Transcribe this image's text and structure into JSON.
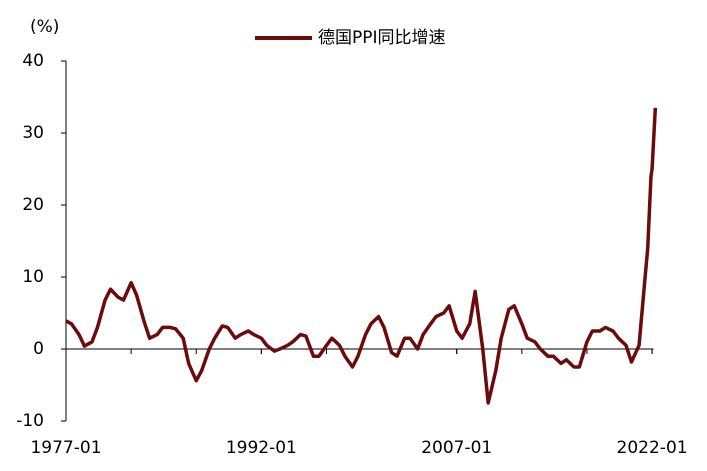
{
  "chart_data": {
    "type": "line",
    "y_label": "(%)",
    "x": [
      "1977-01",
      "1977-06",
      "1978-01",
      "1978-06",
      "1979-01",
      "1979-06",
      "1980-01",
      "1980-06",
      "1981-01",
      "1981-06",
      "1982-01",
      "1982-06",
      "1983-01",
      "1983-06",
      "1984-01",
      "1984-06",
      "1985-01",
      "1985-06",
      "1986-01",
      "1986-06",
      "1987-01",
      "1987-06",
      "1988-01",
      "1988-06",
      "1989-01",
      "1989-06",
      "1990-01",
      "1990-06",
      "1991-01",
      "1991-06",
      "1992-01",
      "1992-06",
      "1993-01",
      "1993-06",
      "1994-01",
      "1994-06",
      "1995-01",
      "1995-06",
      "1996-01",
      "1996-06",
      "1997-01",
      "1997-06",
      "1998-01",
      "1998-06",
      "1999-01",
      "1999-06",
      "2000-01",
      "2000-06",
      "2001-01",
      "2001-06",
      "2002-01",
      "2002-06",
      "2003-01",
      "2003-06",
      "2004-01",
      "2004-06",
      "2005-01",
      "2005-06",
      "2006-01",
      "2006-06",
      "2007-01",
      "2007-06",
      "2008-01",
      "2008-06",
      "2009-01",
      "2009-06",
      "2010-01",
      "2010-06",
      "2011-01",
      "2011-06",
      "2012-01",
      "2012-06",
      "2013-01",
      "2013-06",
      "2014-01",
      "2014-06",
      "2015-01",
      "2015-06",
      "2016-01",
      "2016-06",
      "2017-01",
      "2017-06",
      "2018-01",
      "2018-06",
      "2019-01",
      "2019-06",
      "2020-01",
      "2020-06",
      "2021-01",
      "2021-06",
      "2021-09",
      "2021-12",
      "2022-01",
      "2022-04"
    ],
    "series": [
      {
        "name": "德国PPI同比增速",
        "color": "#6b0b0b",
        "values": [
          3.9,
          3.5,
          2,
          0.4,
          1,
          3,
          6.8,
          8.3,
          7.2,
          6.8,
          9.2,
          7.5,
          3.8,
          1.5,
          2,
          3,
          3,
          2.8,
          1.5,
          -2,
          -4.4,
          -3,
          0,
          1.5,
          3.2,
          3,
          1.5,
          2,
          2.5,
          2,
          1.5,
          0.5,
          -0.3,
          0,
          0.5,
          1,
          2,
          1.8,
          -1,
          -1,
          0.5,
          1.5,
          0.5,
          -1,
          -2.5,
          -1,
          2,
          3.5,
          4.5,
          3,
          -0.5,
          -1,
          1.5,
          1.5,
          0,
          2,
          3.5,
          4.5,
          5,
          6,
          2.5,
          1.5,
          3.5,
          8,
          0,
          -7.5,
          -3,
          1.5,
          5.5,
          6,
          3.5,
          1.5,
          1,
          0,
          -1,
          -1,
          -2,
          -1.5,
          -2.5,
          -2.5,
          1,
          2.5,
          2.5,
          3,
          2.5,
          1.5,
          0.5,
          -1.8,
          0.5,
          9,
          14,
          24,
          25,
          33.5
        ]
      }
    ],
    "xlim": [
      "1977-01",
      "2022-06"
    ],
    "xticks": [
      "1977-01",
      "1992-01",
      "2007-01",
      "2022-01"
    ],
    "ylim": [
      -10,
      40
    ],
    "yticks": [
      -10,
      0,
      10,
      20,
      30,
      40
    ],
    "legend": "top"
  }
}
